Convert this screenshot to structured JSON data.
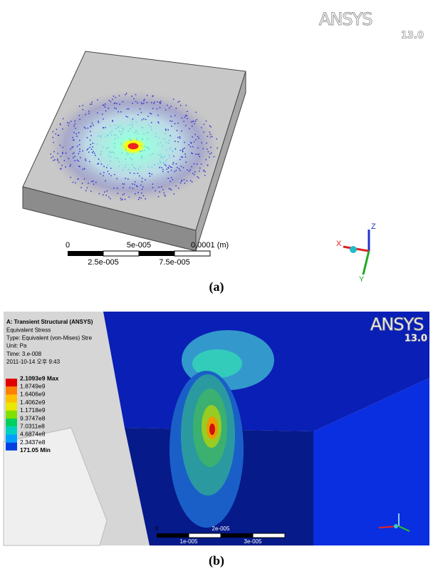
{
  "panel_a": {
    "logo": "ANSYS",
    "version": "13.0",
    "scale_top": [
      "0",
      "5e-005",
      "0.0001 (m)"
    ],
    "scale_bottom": [
      "2.5e-005",
      "7.5e-005"
    ],
    "axes": [
      "Z",
      "X",
      "Y"
    ],
    "caption": "(a)"
  },
  "panel_b": {
    "info": [
      "A: Transient Structural (ANSYS)",
      "Equivalent Stress",
      "Type: Equivalent (von-Mises) Stre",
      "Unit: Pa",
      "Time: 3.e-008",
      "2011-10-14 오후 9:43"
    ],
    "legend": [
      "2.1093e9 Max",
      "1.8749e9",
      "1.6406e9",
      "1.4062e9",
      "1.1718e9",
      "9.3747e8",
      "7.0311e8",
      "4.6874e8",
      "2.3437e8",
      "171.05 Min"
    ],
    "logo": "ANSYS",
    "version": "13.0",
    "scale_top": [
      "0",
      "2e-005"
    ],
    "scale_bottom": [
      "1e-005",
      "3e-005"
    ],
    "caption": "(b)"
  }
}
